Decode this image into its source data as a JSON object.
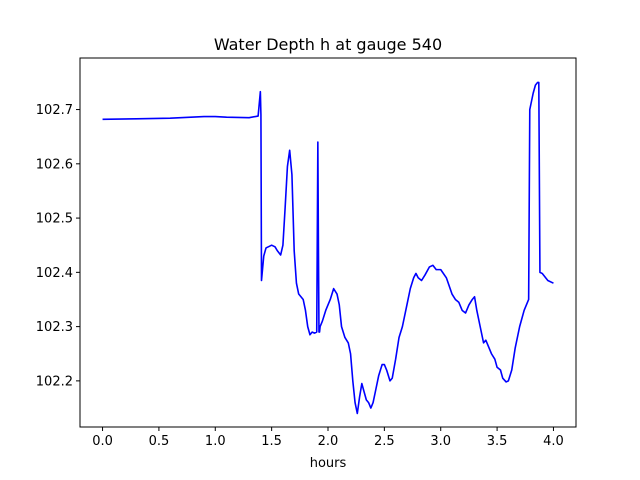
{
  "chart_data": {
    "type": "line",
    "title": "Water Depth h at gauge 540",
    "xlabel": "hours",
    "ylabel": "",
    "xlim": [
      -0.2,
      4.2
    ],
    "ylim": [
      102.115,
      102.795
    ],
    "xticks": [
      0.0,
      0.5,
      1.0,
      1.5,
      2.0,
      2.5,
      3.0,
      3.5,
      4.0
    ],
    "xtick_labels": [
      "0.0",
      "0.5",
      "1.0",
      "1.5",
      "2.0",
      "2.5",
      "3.0",
      "3.5",
      "4.0"
    ],
    "yticks": [
      102.2,
      102.3,
      102.4,
      102.5,
      102.6,
      102.7
    ],
    "ytick_labels": [
      "102.2",
      "102.3",
      "102.4",
      "102.5",
      "102.6",
      "102.7"
    ],
    "grid": false,
    "series": [
      {
        "color": "#0000ff",
        "x": [
          0.0,
          0.3,
          0.6,
          0.9,
          1.0,
          1.1,
          1.3,
          1.38,
          1.4,
          1.405,
          1.41,
          1.43,
          1.45,
          1.48,
          1.5,
          1.53,
          1.55,
          1.58,
          1.6,
          1.62,
          1.64,
          1.66,
          1.68,
          1.7,
          1.72,
          1.74,
          1.76,
          1.78,
          1.8,
          1.82,
          1.84,
          1.86,
          1.88,
          1.9,
          1.91,
          1.915,
          1.92,
          1.925,
          1.93,
          1.95,
          1.98,
          2.02,
          2.05,
          2.08,
          2.1,
          2.12,
          2.15,
          2.18,
          2.2,
          2.22,
          2.24,
          2.26,
          2.28,
          2.3,
          2.32,
          2.34,
          2.36,
          2.38,
          2.4,
          2.42,
          2.45,
          2.48,
          2.5,
          2.52,
          2.55,
          2.57,
          2.6,
          2.63,
          2.66,
          2.7,
          2.73,
          2.76,
          2.78,
          2.8,
          2.83,
          2.86,
          2.9,
          2.93,
          2.96,
          3.0,
          3.05,
          3.1,
          3.13,
          3.16,
          3.19,
          3.22,
          3.25,
          3.28,
          3.3,
          3.32,
          3.35,
          3.38,
          3.4,
          3.42,
          3.45,
          3.48,
          3.5,
          3.53,
          3.55,
          3.58,
          3.6,
          3.63,
          3.66,
          3.7,
          3.74,
          3.78,
          3.79,
          3.8,
          3.82,
          3.84,
          3.86,
          3.87,
          3.88,
          3.9,
          3.95,
          4.0
        ],
        "y": [
          102.682,
          102.683,
          102.684,
          102.687,
          102.687,
          102.686,
          102.685,
          102.688,
          102.733,
          102.69,
          102.385,
          102.43,
          102.445,
          102.448,
          102.45,
          102.447,
          102.44,
          102.432,
          102.45,
          102.52,
          102.595,
          102.625,
          102.58,
          102.44,
          102.38,
          102.36,
          102.355,
          102.35,
          102.33,
          102.3,
          102.285,
          102.29,
          102.288,
          102.29,
          102.64,
          102.45,
          102.29,
          102.29,
          102.3,
          102.31,
          102.33,
          102.35,
          102.37,
          102.36,
          102.34,
          102.3,
          102.28,
          102.27,
          102.25,
          102.2,
          102.16,
          102.14,
          102.17,
          102.195,
          102.18,
          102.165,
          102.16,
          102.15,
          102.16,
          102.18,
          102.21,
          102.23,
          102.23,
          102.22,
          102.2,
          102.205,
          102.24,
          102.28,
          102.3,
          102.34,
          102.37,
          102.39,
          102.398,
          102.39,
          102.385,
          102.395,
          102.41,
          102.413,
          102.405,
          102.405,
          102.39,
          102.36,
          102.35,
          102.345,
          102.33,
          102.325,
          102.34,
          102.35,
          102.355,
          102.33,
          102.3,
          102.27,
          102.275,
          102.265,
          102.25,
          102.24,
          102.225,
          102.22,
          102.205,
          102.198,
          102.2,
          102.22,
          102.26,
          102.3,
          102.33,
          102.35,
          102.7,
          102.71,
          102.73,
          102.745,
          102.75,
          102.75,
          102.4,
          102.398,
          102.385,
          102.38
        ]
      }
    ]
  }
}
